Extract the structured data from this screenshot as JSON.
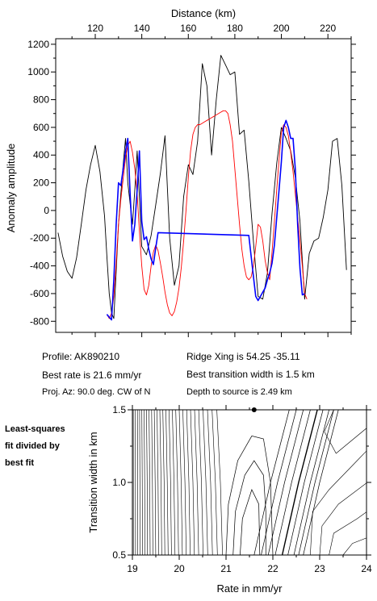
{
  "chart_data": [
    {
      "type": "line",
      "xlabel": "Distance (km)",
      "ylabel": "Anomaly amplitude",
      "xlim": [
        103,
        230
      ],
      "ylim": [
        -880,
        1240
      ],
      "x_ticks": [
        120,
        140,
        160,
        180,
        200,
        220
      ],
      "y_ticks": [
        -800,
        -600,
        -400,
        -200,
        0,
        200,
        400,
        600,
        800,
        1000,
        1200
      ],
      "x_axis_position": "top",
      "grid": false,
      "series": [
        {
          "color": "#000000",
          "x": [
            104,
            106,
            108,
            110,
            112,
            114,
            116,
            118,
            120,
            122,
            124,
            125,
            126,
            127,
            128,
            130,
            131,
            132,
            133,
            134,
            136,
            137,
            138,
            140,
            142,
            144,
            146,
            148,
            150,
            152,
            154,
            156,
            158,
            160,
            162,
            164,
            166,
            168,
            170,
            172,
            174,
            176,
            178,
            180,
            182,
            184,
            186,
            188,
            190,
            192,
            194,
            196,
            198,
            200,
            202,
            204,
            206,
            208,
            210,
            212,
            214,
            216,
            218,
            220,
            222,
            224,
            226,
            228
          ],
          "y": [
            -160,
            -330,
            -440,
            -490,
            -340,
            -100,
            150,
            330,
            470,
            280,
            -40,
            -330,
            -600,
            -740,
            -780,
            -100,
            120,
            330,
            520,
            200,
            -100,
            150,
            430,
            -260,
            -320,
            -180,
            40,
            270,
            540,
            -200,
            -540,
            -400,
            100,
            330,
            260,
            500,
            1060,
            900,
            400,
            800,
            1120,
            1050,
            980,
            1000,
            550,
            580,
            210,
            -230,
            -620,
            -640,
            -450,
            -20,
            340,
            600,
            520,
            430,
            240,
            -80,
            -640,
            -310,
            -220,
            -200,
            -50,
            150,
            500,
            520,
            180,
            -430
          ]
        },
        {
          "color": "#0000ff",
          "x": [
            125,
            126,
            127,
            128,
            129,
            130,
            131,
            132,
            133,
            134,
            135,
            136,
            137,
            138,
            139,
            140,
            141,
            142,
            143,
            144,
            145,
            146,
            147,
            186,
            187,
            188,
            189,
            190,
            191,
            192,
            193,
            194,
            195,
            196,
            197,
            198,
            199,
            200,
            201,
            202,
            203,
            204,
            205,
            206,
            207,
            208,
            209,
            210
          ],
          "y": [
            -750,
            -770,
            -790,
            -500,
            -100,
            200,
            180,
            300,
            430,
            520,
            120,
            -220,
            -100,
            150,
            430,
            -80,
            -210,
            -190,
            -280,
            -350,
            -390,
            -270,
            -160,
            -180,
            -330,
            -480,
            -620,
            -650,
            -620,
            -590,
            -560,
            -500,
            -450,
            -380,
            -250,
            -50,
            150,
            350,
            600,
            650,
            600,
            520,
            520,
            300,
            -100,
            -420,
            -610,
            -600
          ]
        },
        {
          "color": "#ff0000",
          "x": [
            125,
            126,
            127,
            128,
            129,
            130,
            131,
            132,
            133,
            134,
            135,
            136,
            137,
            138,
            139,
            140,
            141,
            142,
            143,
            144,
            145,
            146,
            147,
            148,
            149,
            150,
            151,
            152,
            153,
            154,
            155,
            156,
            157,
            158,
            159,
            160,
            161,
            162,
            163,
            164,
            165,
            166,
            167,
            168,
            169,
            170,
            171,
            172,
            173,
            174,
            175,
            176,
            177,
            178,
            179,
            180,
            181,
            182,
            183,
            184,
            185,
            186,
            187,
            188,
            189,
            190,
            191,
            192,
            193,
            194,
            195,
            196,
            197,
            198,
            199,
            200,
            201,
            202,
            203,
            204,
            205,
            206,
            207,
            208,
            209,
            210,
            211
          ],
          "y": [
            -750,
            -780,
            -740,
            -620,
            -380,
            -100,
            80,
            230,
            380,
            470,
            500,
            420,
            300,
            120,
            -150,
            -400,
            -570,
            -610,
            -540,
            -400,
            -300,
            -250,
            -290,
            -380,
            -480,
            -590,
            -680,
            -740,
            -760,
            -730,
            -660,
            -560,
            -410,
            -220,
            0,
            240,
            430,
            550,
            600,
            620,
            620,
            630,
            640,
            650,
            660,
            670,
            680,
            690,
            700,
            710,
            720,
            720,
            700,
            620,
            500,
            300,
            100,
            -100,
            -280,
            -400,
            -480,
            -500,
            -480,
            -400,
            -260,
            -100,
            -120,
            -220,
            -360,
            -450,
            -500,
            -300,
            -80,
            150,
            370,
            560,
            620,
            600,
            540,
            420,
            280,
            120,
            -50,
            -220,
            -400,
            -600,
            -640
          ]
        }
      ]
    },
    {
      "type": "contour",
      "xlabel": "Rate in mm/yr",
      "ylabel": "Transition width in km",
      "xlim": [
        19,
        24
      ],
      "ylim": [
        0.5,
        1.5
      ],
      "x_ticks": [
        19,
        20,
        21,
        22,
        23,
        24
      ],
      "y_ticks": [
        0.5,
        1.0,
        1.5
      ],
      "best_fit_point": {
        "rate": 21.6,
        "width": 1.5
      },
      "grid": false
    }
  ],
  "info": {
    "profile": "Profile: AK890210",
    "best_rate": "Best rate is 21.6 mm/yr",
    "proj_az": "Proj. Az: 90.0 deg. CW of N",
    "ridge_xing": "Ridge Xing is 54.25 -35.11",
    "transition_width": "Best transition width is 1.5 km",
    "depth": "Depth to source is    2.49 km"
  },
  "side_label": [
    "Least-squares",
    "fit divided by",
    "best fit"
  ]
}
